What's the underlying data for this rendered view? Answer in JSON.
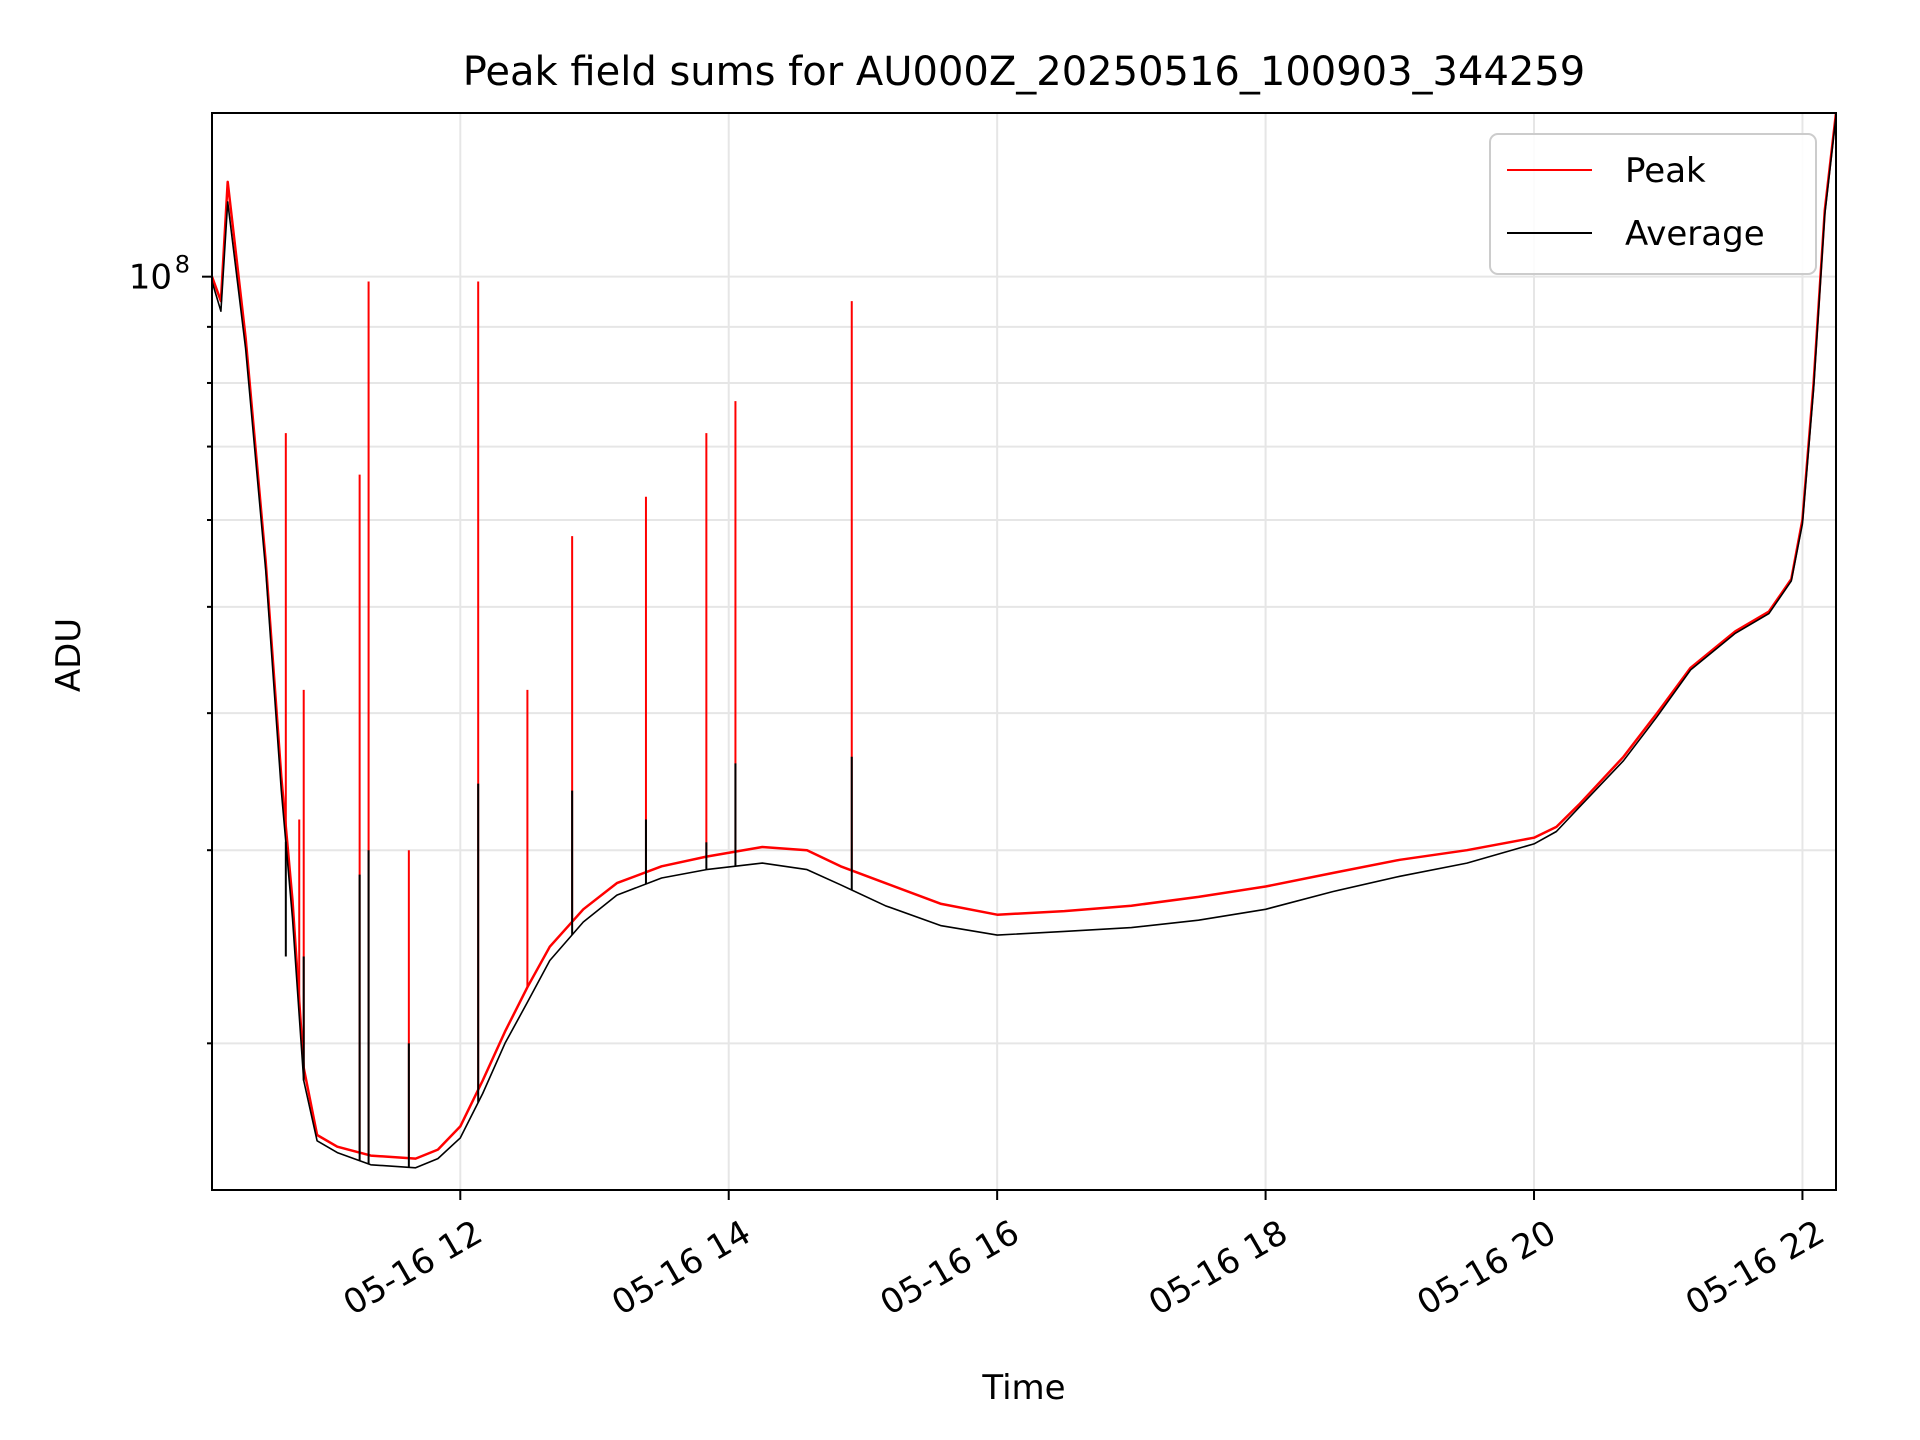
{
  "chart_data": {
    "type": "line",
    "title": "Peak field sums for AU000Z_20250516_100903_344259",
    "xlabel": "Time",
    "ylabel": "ADU",
    "yscale": "log",
    "xlim": [
      "2025-05-16T10:09",
      "2025-05-16T22:15"
    ],
    "ylim": [
      14700000,
      141000000
    ],
    "x_ticks": [
      "05-16 12",
      "05-16 14",
      "05-16 16",
      "05-16 18",
      "05-16 20",
      "05-16 22"
    ],
    "y_ticks": [
      {
        "base": "10",
        "exp": "8"
      }
    ],
    "grid": true,
    "legend": "top-right",
    "series": [
      {
        "name": "Peak",
        "color": "#ff0000",
        "points": [
          [
            "2025-05-16T10:09",
            100000000
          ],
          [
            "2025-05-16T10:13",
            95000000
          ],
          [
            "2025-05-16T10:16",
            122000000
          ],
          [
            "2025-05-16T10:24",
            88000000
          ],
          [
            "2025-05-16T10:33",
            55000000
          ],
          [
            "2025-05-16T10:40",
            35000000
          ],
          [
            "2025-05-16T10:45",
            27000000
          ],
          [
            "2025-05-16T10:50",
            19000000
          ],
          [
            "2025-05-16T10:56",
            16500000
          ],
          [
            "2025-05-16T11:05",
            16100000
          ],
          [
            "2025-05-16T11:20",
            15800000
          ],
          [
            "2025-05-16T11:40",
            15700000
          ],
          [
            "2025-05-16T11:50",
            16000000
          ],
          [
            "2025-05-16T12:00",
            16800000
          ],
          [
            "2025-05-16T12:10",
            18500000
          ],
          [
            "2025-05-16T12:20",
            20500000
          ],
          [
            "2025-05-16T12:30",
            22500000
          ],
          [
            "2025-05-16T12:40",
            24500000
          ],
          [
            "2025-05-16T12:55",
            26500000
          ],
          [
            "2025-05-16T13:10",
            28000000
          ],
          [
            "2025-05-16T13:30",
            29000000
          ],
          [
            "2025-05-16T13:50",
            29600000
          ],
          [
            "2025-05-16T14:15",
            30200000
          ],
          [
            "2025-05-16T14:35",
            30000000
          ],
          [
            "2025-05-16T14:50",
            29000000
          ],
          [
            "2025-05-16T15:10",
            28000000
          ],
          [
            "2025-05-16T15:35",
            26800000
          ],
          [
            "2025-05-16T16:00",
            26200000
          ],
          [
            "2025-05-16T16:30",
            26400000
          ],
          [
            "2025-05-16T17:00",
            26700000
          ],
          [
            "2025-05-16T17:30",
            27200000
          ],
          [
            "2025-05-16T18:00",
            27800000
          ],
          [
            "2025-05-16T18:30",
            28600000
          ],
          [
            "2025-05-16T19:00",
            29400000
          ],
          [
            "2025-05-16T19:30",
            30000000
          ],
          [
            "2025-05-16T20:00",
            30800000
          ],
          [
            "2025-05-16T20:10",
            31500000
          ],
          [
            "2025-05-16T20:20",
            33000000
          ],
          [
            "2025-05-16T20:40",
            36500000
          ],
          [
            "2025-05-16T20:55",
            40000000
          ],
          [
            "2025-05-16T21:10",
            44000000
          ],
          [
            "2025-05-16T21:30",
            47500000
          ],
          [
            "2025-05-16T21:45",
            49500000
          ],
          [
            "2025-05-16T21:55",
            53000000
          ],
          [
            "2025-05-16T22:00",
            60000000
          ],
          [
            "2025-05-16T22:05",
            80000000
          ],
          [
            "2025-05-16T22:10",
            115000000
          ],
          [
            "2025-05-16T22:15",
            141000000
          ]
        ],
        "spikes": [
          [
            "2025-05-16T10:42",
            72000000
          ],
          [
            "2025-05-16T10:48",
            32000000
          ],
          [
            "2025-05-16T10:50",
            42000000
          ],
          [
            "2025-05-16T11:15",
            66000000
          ],
          [
            "2025-05-16T11:19",
            99000000
          ],
          [
            "2025-05-16T11:37",
            30000000
          ],
          [
            "2025-05-16T12:08",
            99000000
          ],
          [
            "2025-05-16T12:30",
            42000000
          ],
          [
            "2025-05-16T12:50",
            58000000
          ],
          [
            "2025-05-16T13:23",
            63000000
          ],
          [
            "2025-05-16T13:50",
            72000000
          ],
          [
            "2025-05-16T14:03",
            77000000
          ],
          [
            "2025-05-16T14:55",
            95000000
          ]
        ]
      },
      {
        "name": "Average",
        "color": "#000000",
        "points": [
          [
            "2025-05-16T10:09",
            99000000
          ],
          [
            "2025-05-16T10:13",
            93000000
          ],
          [
            "2025-05-16T10:16",
            117000000
          ],
          [
            "2025-05-16T10:24",
            86000000
          ],
          [
            "2025-05-16T10:33",
            54000000
          ],
          [
            "2025-05-16T10:40",
            34000000
          ],
          [
            "2025-05-16T10:45",
            26000000
          ],
          [
            "2025-05-16T10:50",
            18500000
          ],
          [
            "2025-05-16T10:56",
            16300000
          ],
          [
            "2025-05-16T11:05",
            15900000
          ],
          [
            "2025-05-16T11:20",
            15500000
          ],
          [
            "2025-05-16T11:40",
            15400000
          ],
          [
            "2025-05-16T11:50",
            15700000
          ],
          [
            "2025-05-16T12:00",
            16400000
          ],
          [
            "2025-05-16T12:10",
            18000000
          ],
          [
            "2025-05-16T12:20",
            20000000
          ],
          [
            "2025-05-16T12:30",
            21800000
          ],
          [
            "2025-05-16T12:40",
            23800000
          ],
          [
            "2025-05-16T12:55",
            25800000
          ],
          [
            "2025-05-16T13:10",
            27300000
          ],
          [
            "2025-05-16T13:30",
            28300000
          ],
          [
            "2025-05-16T13:50",
            28800000
          ],
          [
            "2025-05-16T14:15",
            29200000
          ],
          [
            "2025-05-16T14:35",
            28800000
          ],
          [
            "2025-05-16T14:50",
            27900000
          ],
          [
            "2025-05-16T15:10",
            26700000
          ],
          [
            "2025-05-16T15:35",
            25600000
          ],
          [
            "2025-05-16T16:00",
            25100000
          ],
          [
            "2025-05-16T16:30",
            25300000
          ],
          [
            "2025-05-16T17:00",
            25500000
          ],
          [
            "2025-05-16T17:30",
            25900000
          ],
          [
            "2025-05-16T18:00",
            26500000
          ],
          [
            "2025-05-16T18:30",
            27500000
          ],
          [
            "2025-05-16T19:00",
            28400000
          ],
          [
            "2025-05-16T19:30",
            29200000
          ],
          [
            "2025-05-16T20:00",
            30400000
          ],
          [
            "2025-05-16T20:10",
            31200000
          ],
          [
            "2025-05-16T20:20",
            32800000
          ],
          [
            "2025-05-16T20:40",
            36200000
          ],
          [
            "2025-05-16T20:55",
            39700000
          ],
          [
            "2025-05-16T21:10",
            43800000
          ],
          [
            "2025-05-16T21:30",
            47300000
          ],
          [
            "2025-05-16T21:45",
            49300000
          ],
          [
            "2025-05-16T21:55",
            52800000
          ],
          [
            "2025-05-16T22:00",
            59500000
          ],
          [
            "2025-05-16T22:05",
            79000000
          ],
          [
            "2025-05-16T22:10",
            114000000
          ],
          [
            "2025-05-16T22:15",
            140000000
          ]
        ],
        "spikes": [
          [
            "2025-05-16T10:42",
            24000000
          ],
          [
            "2025-05-16T10:50",
            24000000
          ],
          [
            "2025-05-16T11:15",
            28500000
          ],
          [
            "2025-05-16T11:19",
            30000000
          ],
          [
            "2025-05-16T11:37",
            20000000
          ],
          [
            "2025-05-16T12:08",
            34500000
          ],
          [
            "2025-05-16T12:50",
            34000000
          ],
          [
            "2025-05-16T13:23",
            32000000
          ],
          [
            "2025-05-16T13:50",
            30500000
          ],
          [
            "2025-05-16T14:03",
            36000000
          ],
          [
            "2025-05-16T14:55",
            36500000
          ]
        ]
      }
    ]
  }
}
